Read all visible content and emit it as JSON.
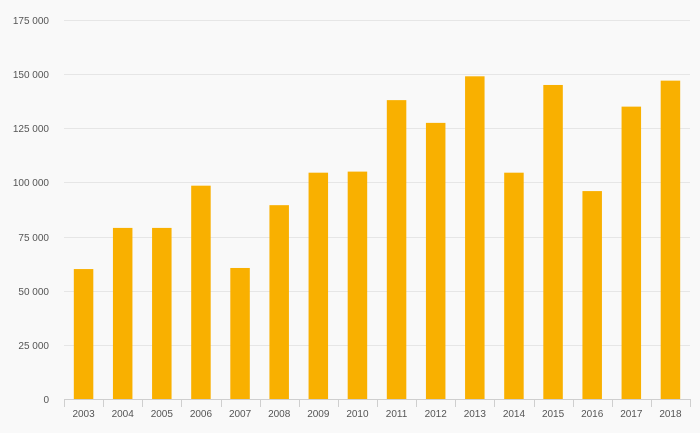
{
  "chart_data": {
    "type": "bar",
    "title": "",
    "xlabel": "",
    "ylabel": "",
    "categories": [
      "2003",
      "2004",
      "2005",
      "2006",
      "2007",
      "2008",
      "2009",
      "2010",
      "2011",
      "2012",
      "2013",
      "2014",
      "2015",
      "2016",
      "2017",
      "2018"
    ],
    "values": [
      60000,
      79000,
      79000,
      98500,
      60500,
      89500,
      104500,
      105000,
      138000,
      127500,
      149000,
      104500,
      145000,
      96000,
      135000,
      147000
    ],
    "ylim": [
      0,
      175000
    ],
    "yticks": [
      0,
      25000,
      50000,
      75000,
      100000,
      125000,
      150000,
      175000
    ],
    "ytick_labels": [
      "0",
      "25 000",
      "50 000",
      "75 000",
      "100 000",
      "125 000",
      "150 000",
      "175 000"
    ],
    "grid": true,
    "colors": {
      "bar": "#f9b000",
      "grid": "#e6e6e6",
      "axis": "#cfcfcf",
      "text": "#555555",
      "background": "#f9f9f9"
    }
  }
}
